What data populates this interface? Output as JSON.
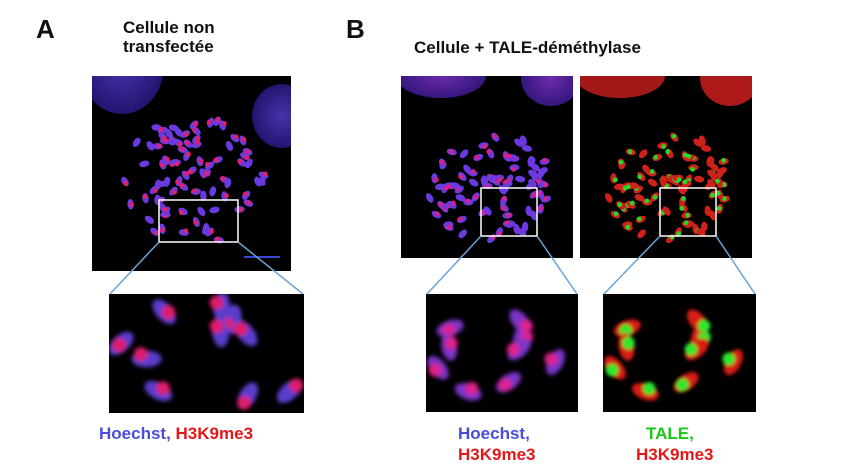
{
  "panel_a": {
    "letter": "A",
    "title_line1": "Cellule non",
    "title_line2": "transfectée",
    "caption_stain1": "Hoechst,",
    "caption_stain2": "H3K9me3"
  },
  "panel_b": {
    "letter": "B",
    "title": "Cellule + TALE-déméthylase",
    "left_caption_line1": "Hoechst,",
    "left_caption_line2": "H3K9me3",
    "right_caption_line1": "TALE,",
    "right_caption_line2": "H3K9me3"
  },
  "colors": {
    "hoechst": "#4b4bdc",
    "h3k9me3": "#e41818",
    "tale": "#17c817",
    "connector": "#6aa3d8",
    "scale_bar": "#3b46d6"
  }
}
